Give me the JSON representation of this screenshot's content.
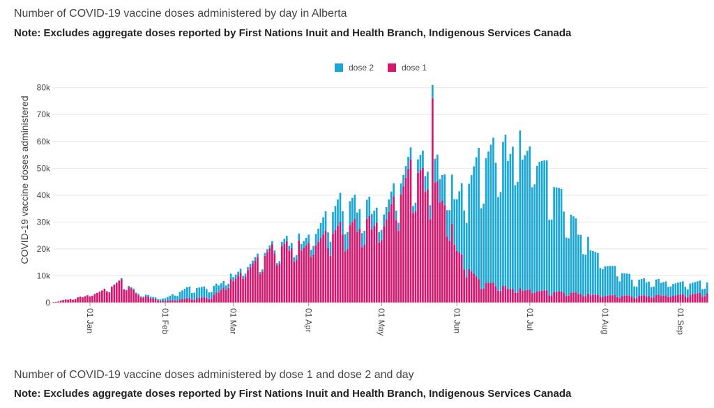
{
  "panel1": {
    "title": "Number of COVID-19 vaccine doses administered by day in Alberta",
    "note": "Note: Excludes aggregate doses reported by First Nations Inuit and Health Branch, Indigenous Services Canada"
  },
  "panel2": {
    "title": "Number of COVID-19 vaccine doses administered by dose 1 and dose 2 and day",
    "note": "Note: Excludes aggregate doses reported by First Nations Inuit and Health Branch, Indigenous Services Canada"
  },
  "chart_data": {
    "type": "bar",
    "stacked": true,
    "title": "Number of COVID-19 vaccine doses administered by day in Alberta",
    "ylabel": "COVID-19 vaccine doses administered",
    "xlabel": "",
    "ylim": [
      0,
      82000
    ],
    "yticks": [
      0,
      10000,
      20000,
      30000,
      40000,
      50000,
      60000,
      70000,
      80000
    ],
    "ytick_labels": [
      "0",
      "10k",
      "20k",
      "30k",
      "40k",
      "50k",
      "60k",
      "70k",
      "80k"
    ],
    "xtick_labels": [
      "01 Jan",
      "01 Feb",
      "01 Mar",
      "01 Apr",
      "01 May",
      "01 Jun",
      "01 Jul",
      "01 Aug",
      "01 Sep"
    ],
    "xtick_day_index": [
      15,
      46,
      74,
      105,
      135,
      166,
      196,
      227,
      258
    ],
    "x_start": "2020-12-17",
    "x_end": "2021-09-12",
    "legend_position": "top-center",
    "colors": {
      "dose 2": "#1aa7d6",
      "dose 1": "#d6166f"
    },
    "grid": true,
    "approx_daily_totals": {
      "anchors": [
        {
          "day": 0,
          "dose1": 300,
          "dose2": 0
        },
        {
          "day": 12,
          "dose1": 2200,
          "dose2": 0
        },
        {
          "day": 20,
          "dose1": 4500,
          "dose2": 0
        },
        {
          "day": 28,
          "dose1": 8000,
          "dose2": 300
        },
        {
          "day": 35,
          "dose1": 3000,
          "dose2": 500
        },
        {
          "day": 45,
          "dose1": 600,
          "dose2": 800
        },
        {
          "day": 55,
          "dose1": 1500,
          "dose2": 4000
        },
        {
          "day": 65,
          "dose1": 2000,
          "dose2": 3500
        },
        {
          "day": 75,
          "dose1": 9500,
          "dose2": 1500
        },
        {
          "day": 90,
          "dose1": 20000,
          "dose2": 1000
        },
        {
          "day": 105,
          "dose1": 22000,
          "dose2": 3000
        },
        {
          "day": 118,
          "dose1": 28000,
          "dose2": 10000
        },
        {
          "day": 135,
          "dose1": 30000,
          "dose2": 5000
        },
        {
          "day": 148,
          "dose1": 50000,
          "dose2": 4000
        },
        {
          "day": 160,
          "dose1": 40000,
          "dose2": 10000
        },
        {
          "day": 166,
          "dose1": 20000,
          "dose2": 20000
        },
        {
          "day": 175,
          "dose1": 8000,
          "dose2": 45000
        },
        {
          "day": 190,
          "dose1": 5000,
          "dose2": 55000
        },
        {
          "day": 200,
          "dose1": 4500,
          "dose2": 50000
        },
        {
          "day": 215,
          "dose1": 3500,
          "dose2": 25000
        },
        {
          "day": 227,
          "dose1": 2800,
          "dose2": 12000
        },
        {
          "day": 240,
          "dose1": 2500,
          "dose2": 6000
        },
        {
          "day": 260,
          "dose1": 3000,
          "dose2": 4500
        },
        {
          "day": 269,
          "dose1": 3500,
          "dose2": 4000
        }
      ],
      "peak_total": 81000,
      "peak_date": "2021-05-22"
    },
    "series": [
      {
        "name": "dose 2",
        "color": "#1aa7d6"
      },
      {
        "name": "dose 1",
        "color": "#d6166f"
      }
    ]
  }
}
